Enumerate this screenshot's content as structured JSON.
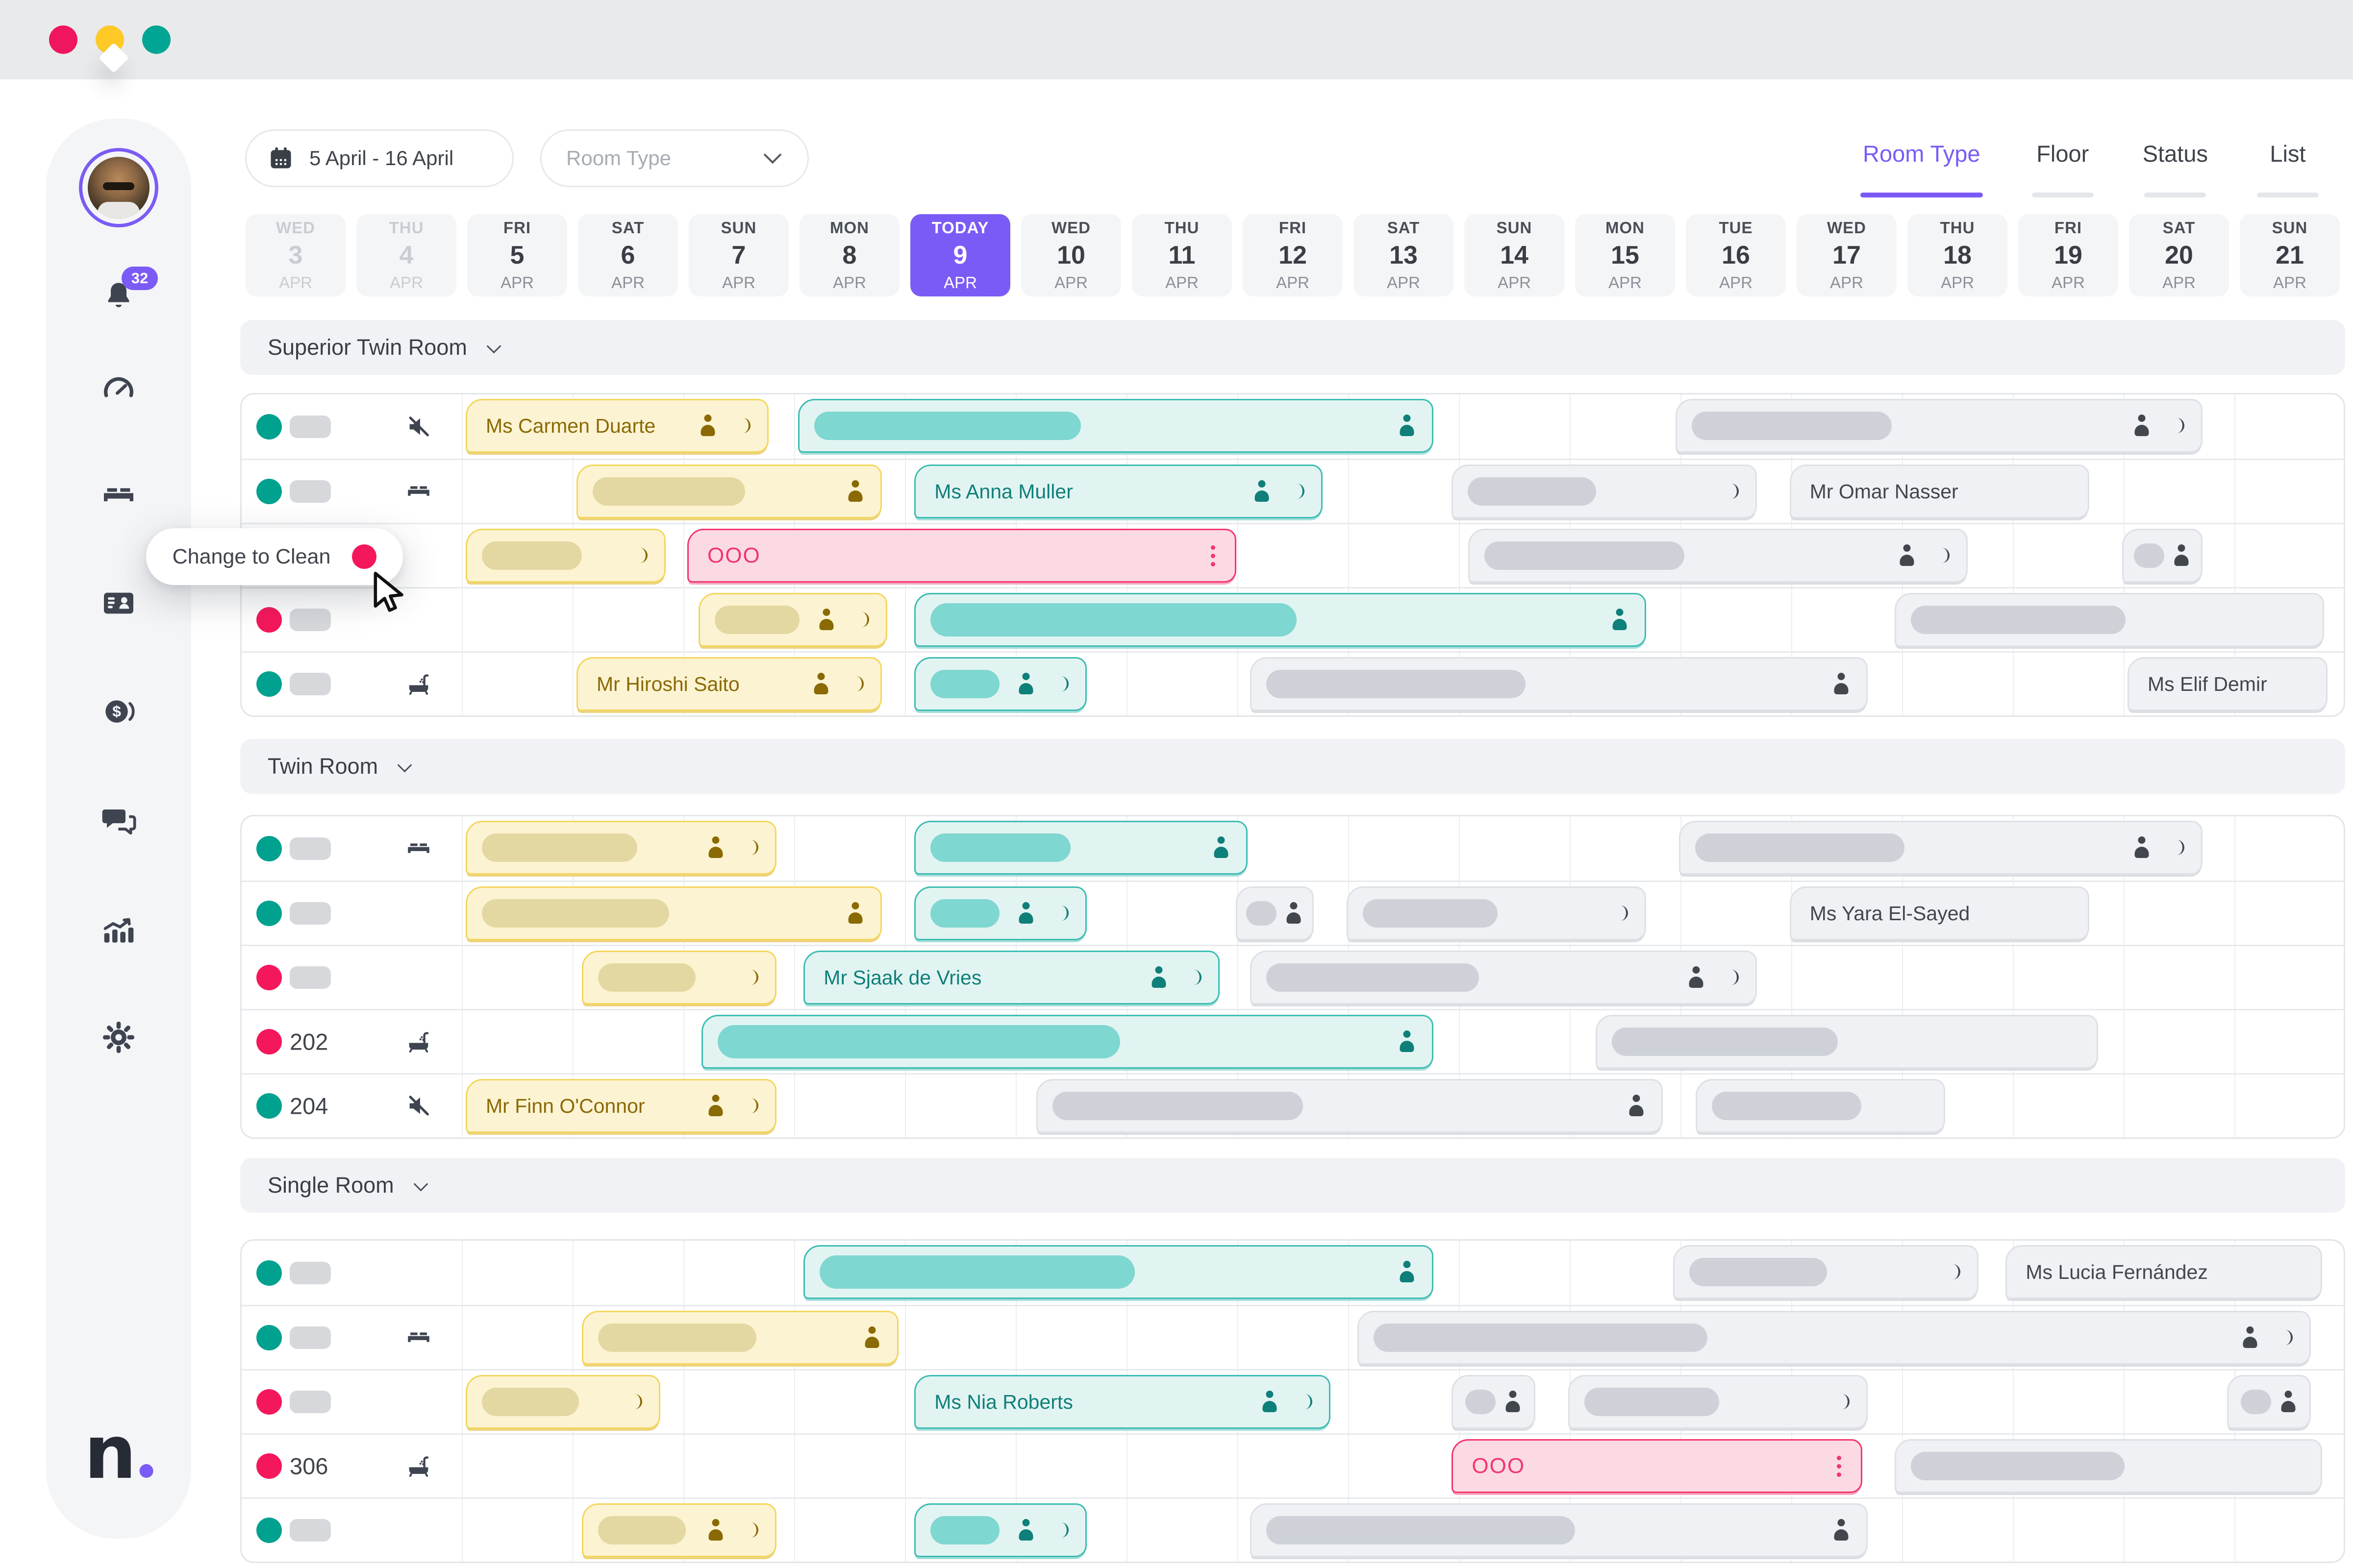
{
  "window": {
    "traffic_lights": [
      {
        "name": "close",
        "color": "#F0155F"
      },
      {
        "name": "minimize",
        "color": "#FFC928"
      },
      {
        "name": "zoom",
        "color": "#00A693"
      }
    ]
  },
  "sidebar": {
    "notification_count": "32",
    "items": [
      {
        "id": "notifications",
        "icon": "bell-icon"
      },
      {
        "id": "dashboard",
        "icon": "gauge-icon"
      },
      {
        "id": "rooms",
        "icon": "bed-icon"
      },
      {
        "id": "reservations",
        "icon": "id-card-icon"
      },
      {
        "id": "finance",
        "icon": "coin-icon"
      },
      {
        "id": "messages",
        "icon": "chat-icon"
      },
      {
        "id": "reports",
        "icon": "chart-icon"
      },
      {
        "id": "settings",
        "icon": "gear-icon"
      }
    ],
    "logo_letter": "n"
  },
  "toolbar": {
    "date_range": "5 April - 16 April",
    "room_type_placeholder": "Room Type",
    "tabs": [
      {
        "label": "Room Type",
        "active": true
      },
      {
        "label": "Floor",
        "active": false
      },
      {
        "label": "Status",
        "active": false
      },
      {
        "label": "List",
        "active": false
      }
    ]
  },
  "calendar": {
    "today_index": 6,
    "days": [
      {
        "dow": "WED",
        "num": "3",
        "month": "APR",
        "state": "past"
      },
      {
        "dow": "THU",
        "num": "4",
        "month": "APR",
        "state": "past"
      },
      {
        "dow": "FRI",
        "num": "5",
        "month": "APR",
        "state": "normal"
      },
      {
        "dow": "SAT",
        "num": "6",
        "month": "APR",
        "state": "normal"
      },
      {
        "dow": "SUN",
        "num": "7",
        "month": "APR",
        "state": "normal"
      },
      {
        "dow": "MON",
        "num": "8",
        "month": "APR",
        "state": "normal"
      },
      {
        "dow": "TODAY",
        "num": "9",
        "month": "APR",
        "state": "today"
      },
      {
        "dow": "WED",
        "num": "10",
        "month": "APR",
        "state": "normal"
      },
      {
        "dow": "THU",
        "num": "11",
        "month": "APR",
        "state": "normal"
      },
      {
        "dow": "FRI",
        "num": "12",
        "month": "APR",
        "state": "normal"
      },
      {
        "dow": "SAT",
        "num": "13",
        "month": "APR",
        "state": "normal"
      },
      {
        "dow": "SUN",
        "num": "14",
        "month": "APR",
        "state": "normal"
      },
      {
        "dow": "MON",
        "num": "15",
        "month": "APR",
        "state": "normal"
      },
      {
        "dow": "TUE",
        "num": "16",
        "month": "APR",
        "state": "normal"
      },
      {
        "dow": "WED",
        "num": "17",
        "month": "APR",
        "state": "normal"
      },
      {
        "dow": "THU",
        "num": "18",
        "month": "APR",
        "state": "normal"
      },
      {
        "dow": "FRI",
        "num": "19",
        "month": "APR",
        "state": "normal"
      },
      {
        "dow": "SAT",
        "num": "20",
        "month": "APR",
        "state": "normal"
      },
      {
        "dow": "SUN",
        "num": "21",
        "month": "APR",
        "state": "normal"
      }
    ]
  },
  "tooltip": {
    "label": "Change to Clean",
    "dot_color": "#F5175C"
  },
  "status_colors": {
    "clean": "#00A18F",
    "dirty": "#F5175C",
    "today_accent": "#7B5BF5"
  },
  "sections": [
    {
      "name": "Superior Twin Room",
      "rows": [
        {
          "dot": "teal",
          "room": null,
          "icon": "mute-icon",
          "bars": [
            {
              "type": "yellow",
              "start": 2.0,
              "end": 4.78,
              "label": "Ms Carmen Duarte",
              "icons": [
                "person",
                "coin"
              ]
            },
            {
              "type": "teal",
              "start": 5.0,
              "end": 10.78,
              "pill": 0.42,
              "icons": [
                "person"
              ]
            },
            {
              "type": "gray",
              "start": 12.92,
              "end": 17.72,
              "pill": 0.38,
              "icons": [
                "person",
                "coin"
              ]
            }
          ]
        },
        {
          "dot": "teal",
          "room": null,
          "icon": "bed-icon",
          "bars": [
            {
              "type": "yellow",
              "start": 3.0,
              "end": 5.8,
              "pill": 0.5,
              "icons": [
                "person"
              ]
            },
            {
              "type": "teal",
              "start": 6.05,
              "end": 9.78,
              "label": "Ms Anna Muller",
              "icons": [
                "person",
                "coin"
              ]
            },
            {
              "type": "gray",
              "start": 10.9,
              "end": 13.7,
              "pill": 0.42,
              "icons": [
                "coin"
              ]
            },
            {
              "type": "gray",
              "start": 13.95,
              "end": 16.7,
              "label": "Mr Omar Nasser",
              "icons": []
            }
          ]
        },
        {
          "dot": "pink",
          "room": null,
          "icon": null,
          "bars": [
            {
              "type": "yellow",
              "start": 2.0,
              "end": 3.85,
              "pill": 0.5,
              "icons": [
                "coin"
              ]
            },
            {
              "type": "ooo",
              "start": 4.0,
              "end": 9.0,
              "label": "OOO",
              "icons": [
                "kebab"
              ]
            },
            {
              "type": "gray",
              "start": 11.05,
              "end": 15.6,
              "pill": 0.4,
              "icons": [
                "person",
                "coin"
              ]
            },
            {
              "type": "gray",
              "start": 16.95,
              "end": 17.72,
              "pill": 0.42,
              "icons": [
                "person"
              ]
            }
          ]
        },
        {
          "dot": "pink",
          "room": null,
          "icon": null,
          "bars": [
            {
              "type": "yellow",
              "start": 4.1,
              "end": 5.85,
              "pill": 0.45,
              "icons": [
                "person",
                "coin"
              ]
            },
            {
              "type": "teal",
              "start": 6.05,
              "end": 12.7,
              "pill": 0.5,
              "big": true,
              "icons": [
                "person"
              ]
            },
            {
              "type": "gray",
              "start": 14.9,
              "end": 18.82,
              "pill": 0.5,
              "icons": []
            }
          ]
        },
        {
          "dot": "teal",
          "room": null,
          "icon": "bathtub-icon",
          "bars": [
            {
              "type": "yellow",
              "start": 3.0,
              "end": 5.8,
              "label": "Mr Hiroshi Saito",
              "icons": [
                "person",
                "coin"
              ]
            },
            {
              "type": "teal",
              "start": 6.05,
              "end": 7.65,
              "pill": 0.4,
              "icons": [
                "person",
                "coin"
              ]
            },
            {
              "type": "gray",
              "start": 9.08,
              "end": 14.7,
              "pill": 0.42,
              "icons": [
                "person"
              ]
            },
            {
              "type": "gray",
              "start": 17.0,
              "end": 18.85,
              "label": "Ms Elif Demir",
              "icons": []
            }
          ]
        }
      ]
    },
    {
      "name": "Twin Room",
      "rows": [
        {
          "dot": "teal",
          "room": null,
          "icon": "bed-icon",
          "bars": [
            {
              "type": "yellow",
              "start": 2.0,
              "end": 4.85,
              "pill": 0.5,
              "icons": [
                "person",
                "coin"
              ]
            },
            {
              "type": "teal",
              "start": 6.05,
              "end": 9.1,
              "pill": 0.42,
              "icons": [
                "person"
              ]
            },
            {
              "type": "gray",
              "start": 12.95,
              "end": 17.72,
              "pill": 0.4,
              "icons": [
                "person",
                "coin"
              ]
            }
          ]
        },
        {
          "dot": "teal",
          "room": null,
          "icon": null,
          "bars": [
            {
              "type": "yellow",
              "start": 2.0,
              "end": 5.8,
              "pill": 0.45,
              "icons": [
                "person"
              ]
            },
            {
              "type": "teal",
              "start": 6.05,
              "end": 7.65,
              "pill": 0.4,
              "icons": [
                "person",
                "coin"
              ]
            },
            {
              "type": "gray",
              "start": 8.95,
              "end": 9.7,
              "pill": 0.42,
              "icons": [
                "person"
              ]
            },
            {
              "type": "gray",
              "start": 9.95,
              "end": 12.7,
              "pill": 0.45,
              "icons": [
                "coin"
              ]
            },
            {
              "type": "gray",
              "start": 13.95,
              "end": 16.7,
              "label": "Ms Yara El-Sayed",
              "icons": []
            }
          ]
        },
        {
          "dot": "pink",
          "room": null,
          "icon": null,
          "bars": [
            {
              "type": "yellow",
              "start": 3.05,
              "end": 4.85,
              "pill": 0.5,
              "icons": [
                "coin"
              ]
            },
            {
              "type": "teal",
              "start": 5.05,
              "end": 8.85,
              "label": "Mr Sjaak de Vries",
              "icons": [
                "person",
                "coin"
              ]
            },
            {
              "type": "gray",
              "start": 9.08,
              "end": 13.7,
              "pill": 0.42,
              "icons": [
                "person",
                "coin"
              ]
            }
          ]
        },
        {
          "dot": "pink",
          "room": "202",
          "icon": "bathtub-icon",
          "bars": [
            {
              "type": "teal",
              "start": 4.13,
              "end": 10.78,
              "pill": 0.55,
              "big": true,
              "icons": [
                "person"
              ]
            },
            {
              "type": "gray",
              "start": 12.2,
              "end": 16.78,
              "pill": 0.45,
              "icons": []
            }
          ]
        },
        {
          "dot": "teal",
          "room": "204",
          "icon": "mute-icon",
          "bars": [
            {
              "type": "yellow",
              "start": 2.0,
              "end": 4.85,
              "label": "Mr Finn O'Connor",
              "icons": [
                "person",
                "coin"
              ]
            },
            {
              "type": "gray",
              "start": 7.15,
              "end": 12.85,
              "pill": 0.4,
              "icons": [
                "person"
              ]
            },
            {
              "type": "gray",
              "start": 13.1,
              "end": 15.4,
              "pill": 0.6,
              "icons": []
            }
          ]
        }
      ]
    },
    {
      "name": "Single Room",
      "rows": [
        {
          "dot": "teal",
          "room": null,
          "icon": null,
          "bars": [
            {
              "type": "teal",
              "start": 5.05,
              "end": 10.78,
              "pill": 0.5,
              "big": true,
              "icons": [
                "person"
              ]
            },
            {
              "type": "gray",
              "start": 12.9,
              "end": 15.7,
              "pill": 0.45,
              "icons": [
                "coin"
              ]
            },
            {
              "type": "gray",
              "start": 15.9,
              "end": 18.8,
              "label": "Ms Lucia Fernández",
              "icons": []
            }
          ]
        },
        {
          "dot": "teal",
          "room": null,
          "icon": "bed-icon",
          "bars": [
            {
              "type": "yellow",
              "start": 3.05,
              "end": 5.95,
              "pill": 0.5,
              "icons": [
                "person"
              ]
            },
            {
              "type": "gray",
              "start": 10.05,
              "end": 18.7,
              "pill": 0.35,
              "icons": [
                "person",
                "coin"
              ]
            }
          ]
        },
        {
          "dot": "pink",
          "room": null,
          "icon": null,
          "bars": [
            {
              "type": "yellow",
              "start": 2.0,
              "end": 3.8,
              "pill": 0.5,
              "icons": [
                "coin"
              ]
            },
            {
              "type": "teal",
              "start": 6.05,
              "end": 9.85,
              "label": "Ms Nia Roberts",
              "icons": [
                "person",
                "coin"
              ]
            },
            {
              "type": "gray",
              "start": 10.9,
              "end": 11.7,
              "pill": 0.42,
              "icons": [
                "person"
              ]
            },
            {
              "type": "gray",
              "start": 11.95,
              "end": 14.7,
              "pill": 0.45,
              "icons": [
                "coin"
              ]
            },
            {
              "type": "gray",
              "start": 17.9,
              "end": 18.7,
              "pill": 0.42,
              "icons": [
                "person"
              ]
            }
          ]
        },
        {
          "dot": "pink",
          "room": "306",
          "icon": "bathtub-icon",
          "bars": [
            {
              "type": "ooo",
              "start": 10.9,
              "end": 14.65,
              "label": "OOO",
              "icons": [
                "kebab"
              ]
            },
            {
              "type": "gray",
              "start": 14.9,
              "end": 18.8,
              "pill": 0.5,
              "icons": []
            }
          ]
        },
        {
          "dot": "teal",
          "room": null,
          "icon": null,
          "bars": [
            {
              "type": "yellow",
              "start": 3.05,
              "end": 4.85,
              "pill": 0.45,
              "icons": [
                "person",
                "coin"
              ]
            },
            {
              "type": "teal",
              "start": 6.05,
              "end": 7.65,
              "pill": 0.4,
              "icons": [
                "person",
                "coin"
              ]
            },
            {
              "type": "gray",
              "start": 9.08,
              "end": 14.7,
              "pill": 0.5,
              "icons": [
                "person"
              ]
            }
          ]
        }
      ]
    }
  ]
}
